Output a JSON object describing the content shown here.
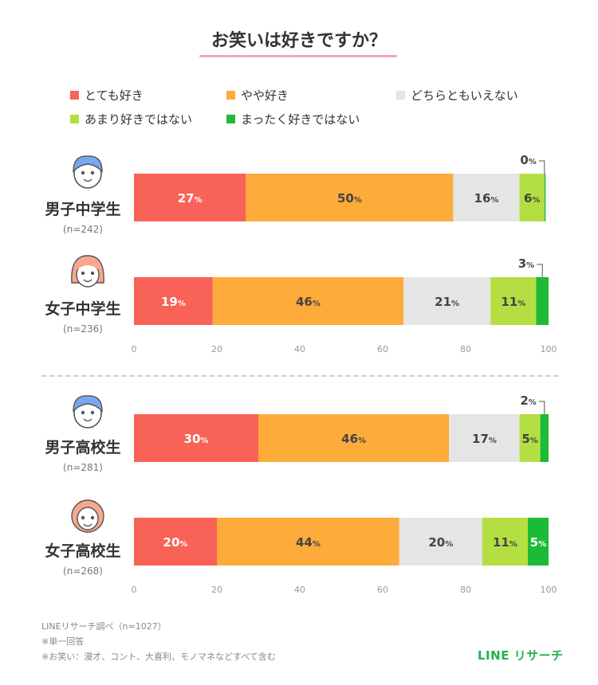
{
  "header": {
    "title": "お笑いは好きですか？"
  },
  "colors": {
    "title_underline": "#f5a3c7",
    "brand": "#22b14c",
    "bar_label_light": "#ffffff",
    "bar_label_dark": "#444444",
    "axis_text": "#999999"
  },
  "chart_data": {
    "type": "bar",
    "orientation": "horizontal",
    "stacked": true,
    "title": "お笑いは好きですか？",
    "value_unit": "%",
    "xlim": [
      0,
      100
    ],
    "x_ticks": [
      "0",
      "20",
      "40",
      "60",
      "80",
      "100"
    ],
    "legend": [
      {
        "name": "とても好き",
        "color": "#f96256"
      },
      {
        "name": "やや好き",
        "color": "#fdab3a"
      },
      {
        "name": "どちらともいえない",
        "color": "#e5e5e5"
      },
      {
        "name": "あまり好きではない",
        "color": "#b4df42"
      },
      {
        "name": "まったく好きではない",
        "color": "#1dba37"
      }
    ],
    "groups": [
      {
        "category": "男子中学生",
        "n": "(n=242)",
        "values": [
          27,
          50,
          16,
          6,
          0
        ]
      },
      {
        "category": "女子中学生",
        "n": "(n=236)",
        "values": [
          19,
          46,
          21,
          11,
          3
        ]
      },
      {
        "category": "男子高校生",
        "n": "(n=281)",
        "values": [
          30,
          46,
          17,
          5,
          2
        ]
      },
      {
        "category": "女子高校生",
        "n": "(n=268)",
        "values": [
          20,
          44,
          20,
          11,
          5
        ]
      }
    ]
  },
  "footer": {
    "source": "LINEリサーチ調べ（n=1027）",
    "note1": "※単一回答",
    "note2": "※お笑い：漫才、コント、大喜利、モノマネなどすべて含む",
    "brand": "LINE リサーチ"
  }
}
